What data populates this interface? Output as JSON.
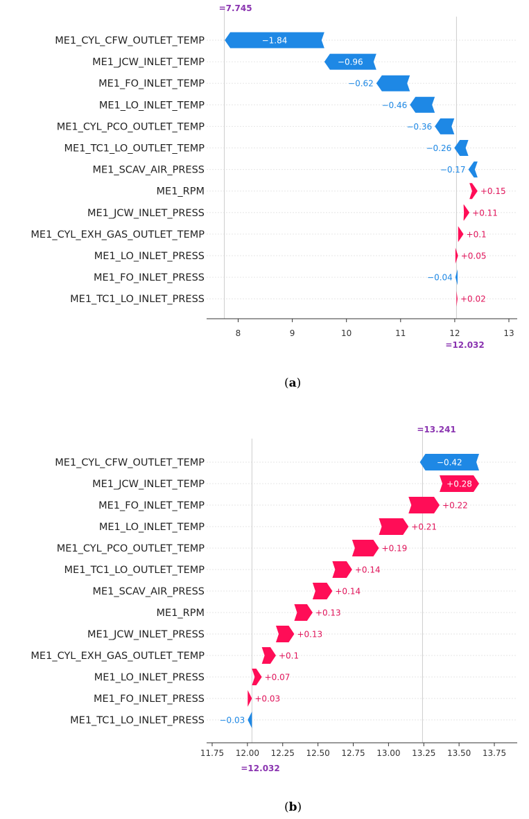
{
  "colors": {
    "positive": "#ff0d57",
    "negative": "#1e88e5",
    "positive_text": "#e0145a",
    "negative_text": "#1e88e5",
    "fx_label": "#8a34b0",
    "axis": "#333333",
    "grid": "#e6e6e6"
  },
  "chart_data": [
    {
      "type": "waterfall",
      "caption": {
        "open": "(",
        "letter": "a",
        "close": ")"
      },
      "base_value": 12.032,
      "base_label": "=12.032",
      "output_value": 7.745,
      "output_label": "=7.745",
      "xlim": [
        7.5,
        13.2
      ],
      "xticks": [
        8,
        9,
        10,
        11,
        12,
        13
      ],
      "xtick_labels": [
        "8",
        "9",
        "10",
        "11",
        "12",
        "13"
      ],
      "features": [
        {
          "name": "ME1_CYL_CFW_OUTLET_TEMP",
          "value": -1.84,
          "label": "−1.84"
        },
        {
          "name": "ME1_JCW_INLET_TEMP",
          "value": -0.96,
          "label": "−0.96"
        },
        {
          "name": "ME1_FO_INLET_TEMP",
          "value": -0.62,
          "label": "−0.62"
        },
        {
          "name": "ME1_LO_INLET_TEMP",
          "value": -0.46,
          "label": "−0.46"
        },
        {
          "name": "ME1_CYL_PCO_OUTLET_TEMP",
          "value": -0.36,
          "label": "−0.36"
        },
        {
          "name": "ME1_TC1_LO_OUTLET_TEMP",
          "value": -0.26,
          "label": "−0.26"
        },
        {
          "name": "ME1_SCAV_AIR_PRESS",
          "value": -0.17,
          "label": "−0.17"
        },
        {
          "name": "ME1_RPM",
          "value": 0.15,
          "label": "+0.15"
        },
        {
          "name": "ME1_JCW_INLET_PRESS",
          "value": 0.11,
          "label": "+0.11"
        },
        {
          "name": "ME1_CYL_EXH_GAS_OUTLET_TEMP",
          "value": 0.1,
          "label": "+0.1"
        },
        {
          "name": "ME1_LO_INLET_PRESS",
          "value": 0.05,
          "label": "+0.05"
        },
        {
          "name": "ME1_FO_INLET_PRESS",
          "value": -0.04,
          "label": "−0.04"
        },
        {
          "name": "ME1_TC1_LO_INLET_PRESS",
          "value": 0.02,
          "label": "+0.02"
        }
      ]
    },
    {
      "type": "waterfall",
      "caption": {
        "open": "(",
        "letter": "b",
        "close": ")"
      },
      "base_value": 12.032,
      "base_label": "=12.032",
      "output_value": 13.241,
      "output_label": "=13.241",
      "xlim": [
        11.75,
        13.95
      ],
      "xticks": [
        11.75,
        12.0,
        12.25,
        12.5,
        12.75,
        13.0,
        13.25,
        13.5,
        13.75
      ],
      "xtick_labels": [
        "11.75",
        "12.00",
        "12.25",
        "12.50",
        "12.75",
        "13.00",
        "13.25",
        "13.50",
        "13.75"
      ],
      "features": [
        {
          "name": "ME1_CYL_CFW_OUTLET_TEMP",
          "value": -0.42,
          "label": "−0.42"
        },
        {
          "name": "ME1_JCW_INLET_TEMP",
          "value": 0.28,
          "label": "+0.28"
        },
        {
          "name": "ME1_FO_INLET_TEMP",
          "value": 0.22,
          "label": "+0.22"
        },
        {
          "name": "ME1_LO_INLET_TEMP",
          "value": 0.21,
          "label": "+0.21"
        },
        {
          "name": "ME1_CYL_PCO_OUTLET_TEMP",
          "value": 0.19,
          "label": "+0.19"
        },
        {
          "name": "ME1_TC1_LO_OUTLET_TEMP",
          "value": 0.14,
          "label": "+0.14"
        },
        {
          "name": "ME1_SCAV_AIR_PRESS",
          "value": 0.14,
          "label": "+0.14"
        },
        {
          "name": "ME1_RPM",
          "value": 0.13,
          "label": "+0.13"
        },
        {
          "name": "ME1_JCW_INLET_PRESS",
          "value": 0.13,
          "label": "+0.13"
        },
        {
          "name": "ME1_CYL_EXH_GAS_OUTLET_TEMP",
          "value": 0.1,
          "label": "+0.1"
        },
        {
          "name": "ME1_LO_INLET_PRESS",
          "value": 0.07,
          "label": "+0.07"
        },
        {
          "name": "ME1_FO_INLET_PRESS",
          "value": 0.03,
          "label": "+0.03"
        },
        {
          "name": "ME1_TC1_LO_INLET_PRESS",
          "value": -0.03,
          "label": "−0.03"
        }
      ]
    }
  ]
}
